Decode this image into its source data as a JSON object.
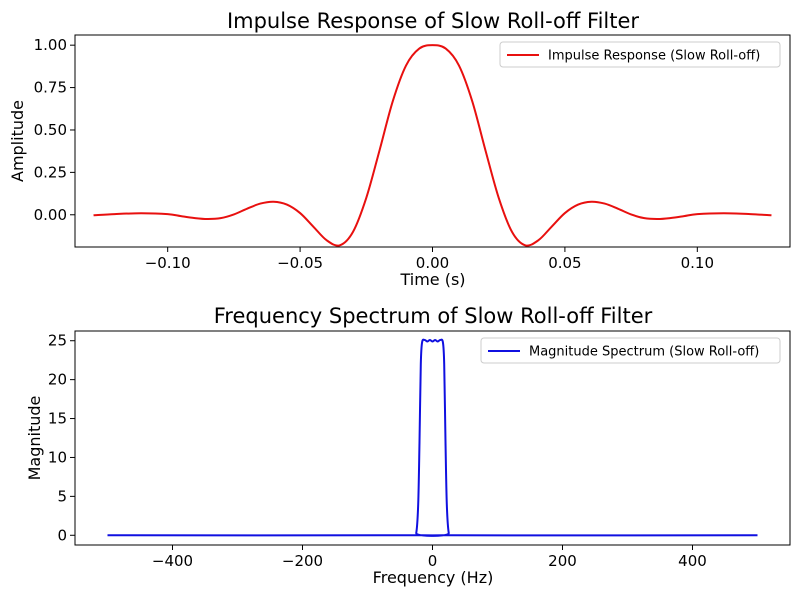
{
  "chart_data": [
    {
      "type": "line",
      "title": "Impulse Response of Slow Roll-off Filter",
      "xlabel": "Time (s)",
      "ylabel": "Amplitude",
      "xlim": [
        -0.135,
        0.135
      ],
      "ylim": [
        -0.19,
        1.06
      ],
      "xticks": [
        -0.1,
        -0.05,
        0.0,
        0.05,
        0.1
      ],
      "xtick_labels": [
        "−0.10",
        "−0.05",
        "0.00",
        "0.05",
        "0.10"
      ],
      "yticks": [
        0.0,
        0.25,
        0.5,
        0.75,
        1.0
      ],
      "ytick_labels": [
        "0.00",
        "0.25",
        "0.50",
        "0.75",
        "1.00"
      ],
      "grid": false,
      "legend_position": "top-right",
      "series": [
        {
          "name": "Impulse Response (Slow Roll-off)",
          "color": "#e8100f",
          "x": [
            -0.128,
            -0.12,
            -0.11,
            -0.1,
            -0.095,
            -0.09,
            -0.085,
            -0.08,
            -0.075,
            -0.07,
            -0.065,
            -0.06,
            -0.055,
            -0.05,
            -0.045,
            -0.04,
            -0.035,
            -0.03,
            -0.025,
            -0.02,
            -0.015,
            -0.01,
            -0.005,
            0.0,
            0.005,
            0.01,
            0.015,
            0.02,
            0.025,
            0.03,
            0.035,
            0.04,
            0.045,
            0.05,
            0.055,
            0.06,
            0.065,
            0.07,
            0.075,
            0.08,
            0.085,
            0.09,
            0.095,
            0.1,
            0.11,
            0.12,
            0.128
          ],
          "y": [
            -0.003,
            0.004,
            0.009,
            0.004,
            -0.008,
            -0.019,
            -0.025,
            -0.02,
            0.002,
            0.036,
            0.066,
            0.077,
            0.06,
            0.01,
            -0.07,
            -0.15,
            -0.18,
            -0.1,
            0.1,
            0.38,
            0.67,
            0.88,
            0.98,
            1.0,
            0.98,
            0.88,
            0.67,
            0.38,
            0.1,
            -0.1,
            -0.18,
            -0.15,
            -0.07,
            0.01,
            0.06,
            0.077,
            0.066,
            0.036,
            0.002,
            -0.02,
            -0.025,
            -0.019,
            -0.008,
            0.004,
            0.009,
            0.004,
            -0.003
          ]
        }
      ]
    },
    {
      "type": "line",
      "title": "Frequency Spectrum of Slow Roll-off Filter",
      "xlabel": "Frequency (Hz)",
      "ylabel": "Magnitude",
      "xlim": [
        -550,
        550
      ],
      "ylim": [
        -1.25,
        26.25
      ],
      "xticks": [
        -400,
        -200,
        0,
        200,
        400
      ],
      "xtick_labels": [
        "−400",
        "−200",
        "0",
        "200",
        "400"
      ],
      "yticks": [
        0,
        5,
        10,
        15,
        20,
        25
      ],
      "ytick_labels": [
        "0",
        "5",
        "10",
        "15",
        "20",
        "25"
      ],
      "grid": false,
      "legend_position": "top-right",
      "series": [
        {
          "name": "Magnitude Spectrum (Slow Roll-off)",
          "color": "#1010e0",
          "x": [
            -500,
            -30,
            -25,
            -22,
            -20,
            -18,
            -16,
            -12,
            -8,
            -4,
            0,
            4,
            8,
            12,
            16,
            18,
            20,
            22,
            25,
            30,
            500
          ],
          "y": [
            0,
            0,
            0.3,
            4,
            12,
            22,
            24.8,
            25.1,
            24.9,
            25.1,
            24.9,
            25.1,
            24.9,
            25.1,
            24.8,
            22,
            12,
            4,
            0.3,
            0,
            0
          ]
        }
      ]
    }
  ]
}
